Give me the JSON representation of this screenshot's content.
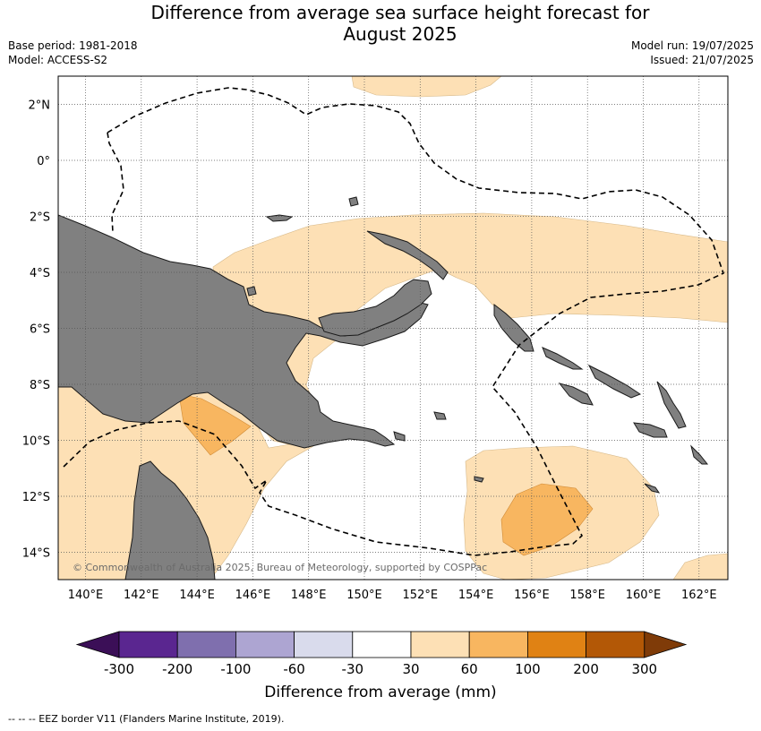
{
  "title_line1": "Difference from average sea surface height forecast for",
  "title_line2": "August 2025",
  "base_period": "Base period: 1981-2018",
  "model": "Model: ACCESS-S2",
  "model_run": "Model run: 19/07/2025",
  "issued": "Issued: 21/07/2025",
  "copyright": "© Commonwealth of Australia 2025, Bureau of Meteorology, supported by COSPPac",
  "footer": "-- -- -- EEZ border V11 (Flanders Marine Institute, 2019).",
  "map": {
    "lon_ticks": [
      "140°E",
      "142°E",
      "144°E",
      "146°E",
      "148°E",
      "150°E",
      "152°E",
      "154°E",
      "156°E",
      "158°E",
      "160°E",
      "162°E"
    ],
    "lat_ticks": [
      "2°N",
      "0°",
      "2°S",
      "4°S",
      "6°S",
      "8°S",
      "10°S",
      "12°S",
      "14°S"
    ],
    "colors": {
      "land": "#808080",
      "ocean": "#ffffff",
      "grid": "#555555",
      "eez": "#000000"
    }
  },
  "colorbar": {
    "title": "Difference from average (mm)",
    "labels": [
      "-300",
      "-200",
      "-100",
      "-60",
      "-30",
      "30",
      "60",
      "100",
      "200",
      "300"
    ],
    "colors": [
      "#3b0f57",
      "#5a2690",
      "#7f6fae",
      "#ada5d2",
      "#d9dbec",
      "#ffffff",
      "#fde0b5",
      "#f8b660",
      "#e08214",
      "#b35806",
      "#7f3b08"
    ]
  }
}
